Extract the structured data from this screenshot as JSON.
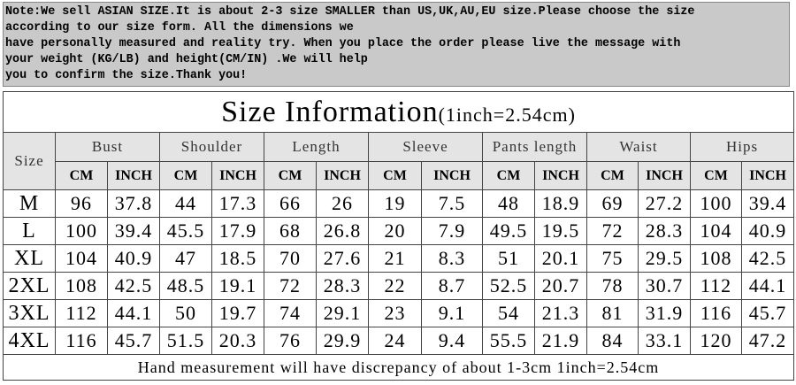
{
  "note": {
    "lines": [
      "Note:We sell ASIAN SIZE.It is about 2-3 size SMALLER than US,UK,AU,EU size.Please choose the size",
      "according to our size form. All the dimensions we",
      "have personally measured and reality try. When you place the order please live the message with",
      "your weight (KG/LB) and height(CM/IN) .We will help",
      "you to confirm the size.Thank you!"
    ]
  },
  "table": {
    "title": "Size Information",
    "subtitle": "(1inch=2.54cm)",
    "size_header": "Size",
    "groups": [
      "Bust",
      "Shoulder",
      "Length",
      "Sleeve",
      "Pants length",
      "Waist",
      "Hips"
    ],
    "units": [
      "CM",
      "INCH"
    ],
    "rows": [
      [
        "M",
        96,
        37.8,
        44,
        17.3,
        66,
        26,
        19,
        7.5,
        48,
        18.9,
        69,
        27.2,
        100,
        39.4
      ],
      [
        "L",
        100,
        39.4,
        45.5,
        17.9,
        68,
        26.8,
        20,
        7.9,
        49.5,
        19.5,
        72,
        28.3,
        104,
        40.9
      ],
      [
        "XL",
        104,
        40.9,
        47,
        18.5,
        70,
        27.6,
        21,
        8.3,
        51,
        20.1,
        75,
        29.5,
        108,
        42.5
      ],
      [
        "2XL",
        108,
        42.5,
        48.5,
        19.1,
        72,
        28.3,
        22,
        8.7,
        52.5,
        20.7,
        78,
        30.7,
        112,
        44.1
      ],
      [
        "3XL",
        112,
        44.1,
        50,
        19.7,
        74,
        29.1,
        23,
        9.1,
        54,
        21.3,
        81,
        31.9,
        116,
        45.7
      ],
      [
        "4XL",
        116,
        45.7,
        51.5,
        20.3,
        76,
        29.9,
        24,
        9.4,
        55.5,
        21.9,
        84,
        33.1,
        120,
        47.2
      ]
    ],
    "footer": "Hand measurement will have discrepancy of about 1-3cm 1inch=2.54cm"
  }
}
